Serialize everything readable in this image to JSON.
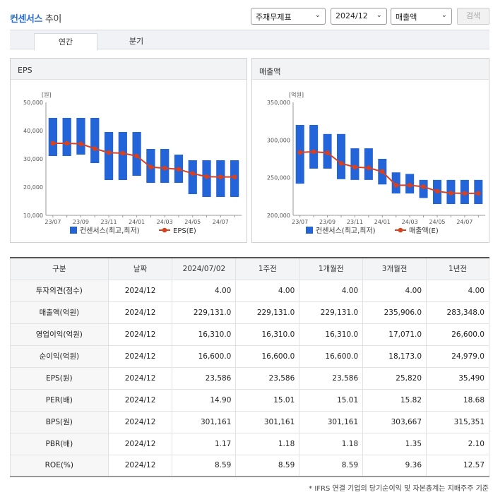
{
  "header": {
    "title_brand": "컨센서스",
    "title_rest": "추이",
    "select_item": "주재무제표",
    "select_period": "2024/12",
    "select_metric": "매출액",
    "search_label": "검색"
  },
  "tabs": [
    "연간",
    "분기"
  ],
  "charts": [
    {
      "panel_title": "EPS",
      "unit": "[원]",
      "legend_bar": "컨센서스(최고,최저)",
      "legend_line": "EPS(E)"
    },
    {
      "panel_title": "매출액",
      "unit": "[억원]",
      "legend_bar": "컨센서스(최고,최저)",
      "legend_line": "매출액(E)"
    }
  ],
  "chart_data": [
    {
      "type": "bar",
      "subtype": "floating-range-with-line",
      "title": "EPS",
      "ylabel": "[원]",
      "ylim": [
        10000,
        50000
      ],
      "yticks": [
        "50,000",
        "40,000",
        "30,000",
        "20,000",
        "10,000"
      ],
      "ytick_values": [
        50000,
        40000,
        30000,
        20000,
        10000
      ],
      "xticks": [
        "23/07",
        "23/09",
        "23/11",
        "24/01",
        "24/03",
        "24/05",
        "24/07"
      ],
      "n_points": 14,
      "series": [
        {
          "name": "컨센서스(최고,최저)",
          "kind": "range",
          "high": [
            44500,
            44500,
            44500,
            44500,
            39500,
            39500,
            39500,
            33500,
            33500,
            31500,
            29500,
            29500,
            29500,
            29500
          ],
          "low": [
            31000,
            31000,
            31500,
            28500,
            22500,
            22500,
            24000,
            21500,
            21500,
            21500,
            17500,
            16500,
            16500,
            16500
          ]
        },
        {
          "name": "EPS(E)",
          "kind": "line",
          "values": [
            35500,
            35500,
            35300,
            33600,
            32200,
            32000,
            31000,
            27100,
            26700,
            26300,
            24800,
            23700,
            23586,
            23586
          ]
        }
      ],
      "colors": {
        "bar": "#2464d9",
        "line": "#d9411e"
      },
      "grid": false,
      "legend": "bottom"
    },
    {
      "type": "bar",
      "subtype": "floating-range-with-line",
      "title": "매출액",
      "ylabel": "[억원]",
      "ylim": [
        200000,
        350000
      ],
      "yticks": [
        "350,000",
        "300,000",
        "250,000",
        "200,000"
      ],
      "ytick_values": [
        350000,
        300000,
        250000,
        200000
      ],
      "xticks": [
        "23/07",
        "23/09",
        "23/11",
        "24/01",
        "24/03",
        "24/05",
        "24/07"
      ],
      "n_points": 14,
      "series": [
        {
          "name": "컨센서스(최고,최저)",
          "kind": "range",
          "high": [
            320000,
            320000,
            308000,
            308000,
            289000,
            289000,
            275000,
            257000,
            255000,
            247000,
            247000,
            247000,
            247000,
            247000
          ],
          "low": [
            242000,
            262000,
            262000,
            248000,
            247000,
            247000,
            241000,
            229000,
            229000,
            223000,
            215000,
            215000,
            215000,
            215000
          ]
        },
        {
          "name": "매출액(E)",
          "kind": "line",
          "values": [
            283500,
            284500,
            283000,
            269000,
            264000,
            263000,
            258000,
            240000,
            240000,
            238000,
            232000,
            229500,
            229131,
            229131
          ]
        }
      ],
      "colors": {
        "bar": "#2464d9",
        "line": "#d9411e"
      },
      "grid": false,
      "legend": "bottom"
    }
  ],
  "table": {
    "headers": [
      "구분",
      "날짜",
      "2024/07/02",
      "1주전",
      "1개월전",
      "3개월전",
      "1년전"
    ],
    "rows": [
      [
        "투자의견(점수)",
        "2024/12",
        "4.00",
        "4.00",
        "4.00",
        "4.00",
        "4.00"
      ],
      [
        "매출액(억원)",
        "2024/12",
        "229,131.0",
        "229,131.0",
        "229,131.0",
        "235,906.0",
        "283,348.0"
      ],
      [
        "영업이익(억원)",
        "2024/12",
        "16,310.0",
        "16,310.0",
        "16,310.0",
        "17,071.0",
        "26,600.0"
      ],
      [
        "순이익(억원)",
        "2024/12",
        "16,600.0",
        "16,600.0",
        "16,600.0",
        "18,173.0",
        "24,979.0"
      ],
      [
        "EPS(원)",
        "2024/12",
        "23,586",
        "23,586",
        "23,586",
        "25,820",
        "35,490"
      ],
      [
        "PER(배)",
        "2024/12",
        "14.90",
        "15.01",
        "15.01",
        "15.82",
        "18.68"
      ],
      [
        "BPS(원)",
        "2024/12",
        "301,161",
        "301,161",
        "301,161",
        "303,667",
        "315,351"
      ],
      [
        "PBR(배)",
        "2024/12",
        "1.17",
        "1.18",
        "1.18",
        "1.35",
        "2.10"
      ],
      [
        "ROE(%)",
        "2024/12",
        "8.59",
        "8.59",
        "8.59",
        "9.36",
        "12.57"
      ]
    ]
  },
  "footnote": "* IFRS 연결 기업의 당기순이익 및 자본총계는 지배주주 기준"
}
